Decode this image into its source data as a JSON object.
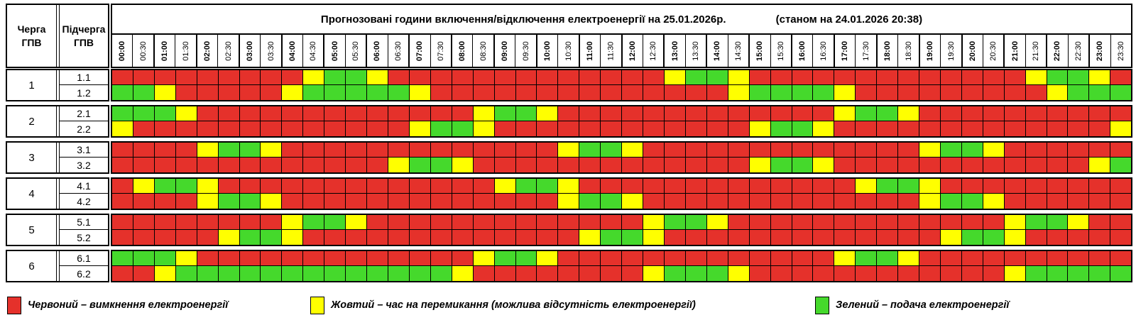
{
  "title": "Прогнозовані години включення/відключення електроенергії на 25.01.2026р.",
  "status": "(станом на 24.01.2026 20:38)",
  "columns": {
    "queue": "Черга\nГПВ",
    "subqueue": "Підчерга\nГПВ"
  },
  "legend": [
    {
      "key": "R",
      "color": "#e5312b",
      "label": "Червоний – вимкнення електроенергії"
    },
    {
      "key": "Y",
      "color": "#ffff00",
      "label": "Жовтий – час на перемикання (можлива відсутність електроенергії)"
    },
    {
      "key": "G",
      "color": "#45d92c",
      "label": "Зелений – подача електроенергії"
    }
  ],
  "chart_data": {
    "type": "heatmap",
    "title": "Прогнозовані години включення/відключення електроенергії на 25.01.2026р.",
    "subtitle": "(станом на 24.01.2026 20:38)",
    "x": [
      "00:00",
      "00:30",
      "01:00",
      "01:30",
      "02:00",
      "02:30",
      "03:00",
      "03:30",
      "04:00",
      "04:30",
      "05:00",
      "05:30",
      "06:00",
      "06:30",
      "07:00",
      "07:30",
      "08:00",
      "08:30",
      "09:00",
      "09:30",
      "10:00",
      "10:30",
      "11:00",
      "11:30",
      "12:00",
      "12:30",
      "13:00",
      "13:30",
      "14:00",
      "14:30",
      "15:00",
      "15:30",
      "16:00",
      "16:30",
      "17:00",
      "17:30",
      "18:00",
      "18:30",
      "19:00",
      "19:30",
      "20:00",
      "20:30",
      "21:00",
      "21:30",
      "22:00",
      "22:30",
      "23:00",
      "23:30"
    ],
    "states": {
      "R": "вимкнення електроенергії",
      "Y": "час на перемикання (можлива відсутність електроенергії)",
      "G": "подача електроенергії"
    },
    "groups": [
      {
        "queue": "1",
        "rows": [
          {
            "label": "1.1",
            "values": "RRRRRRRRRYGGYRRRRRRRRRRRRRYGGYRRRRRRRRRRRRRYGGYR"
          },
          {
            "label": "1.2",
            "values": "GGYRRRRRYGGGGGYRRRRRRRRRRRRRRYGGGGYRRRRRRRRRYGGG"
          }
        ]
      },
      {
        "queue": "2",
        "rows": [
          {
            "label": "2.1",
            "values": "GGGYRRRRRRRRRRRRRYGGYRRRRRRRRRRRRRYGGYRRRRRRRRRR"
          },
          {
            "label": "2.2",
            "values": "YRRRRRRRRRRRRRYGGYRRRRRRRRRRRRYGGYRRRRRRRRRRRRRY"
          }
        ]
      },
      {
        "queue": "3",
        "rows": [
          {
            "label": "3.1",
            "values": "RRRRYGGYRRRRRRRRRRRRRYGGYRRRRRRRRRRRRRYGGYRRRRRR"
          },
          {
            "label": "3.2",
            "values": "RRRRRRRRRRRRRYGGYRRRRRRRRRRRRRYGGYRRRRRRRRRRRRYG"
          }
        ]
      },
      {
        "queue": "4",
        "rows": [
          {
            "label": "4.1",
            "values": "RYGGYRRRRRRRRRRRRRYGGYRRRRRRRRRRRRRYGGYRRRRRRRRR"
          },
          {
            "label": "4.2",
            "values": "RRRRYGGYRRRRRRRRRRRRRYGGYRRRRRRRRRRRRRYGGYRRRRRR"
          }
        ]
      },
      {
        "queue": "5",
        "rows": [
          {
            "label": "5.1",
            "values": "RRRRRRRRYGGYRRRRRRRRRRRRRYGGYRRRRRRRRRRRRRYGGYRR"
          },
          {
            "label": "5.2",
            "values": "RRRRRYGGYRRRRRRRRRRRRRYGGYRRRRRRRRRRRRRYGGYRRRRR"
          }
        ]
      },
      {
        "queue": "6",
        "rows": [
          {
            "label": "6.1",
            "values": "GGGYRRRRRRRRRRRRRYGGYRRRRRRRRRRRRRYGGYRRRRRRRRRR"
          },
          {
            "label": "6.2",
            "values": "RRYGGGGGGGGGGGGGYRRRRRRRRYGGGYRRRRRRRRRRRRYGGGGG"
          }
        ]
      }
    ]
  }
}
